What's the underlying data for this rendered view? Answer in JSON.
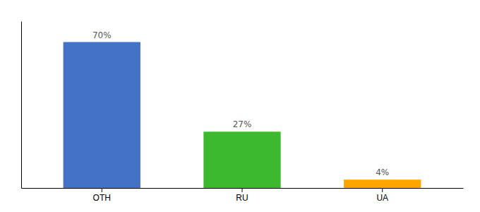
{
  "chart_data": {
    "type": "bar",
    "categories": [
      "OTH",
      "RU",
      "UA"
    ],
    "values": [
      70,
      27,
      4
    ],
    "colors": [
      "#4472C4",
      "#3CB92E",
      "#FFA500"
    ],
    "ylim": [
      0,
      80
    ],
    "data_labels": true,
    "value_labels": [
      "70%",
      "27%",
      "4%"
    ],
    "tick_labels": "x"
  }
}
